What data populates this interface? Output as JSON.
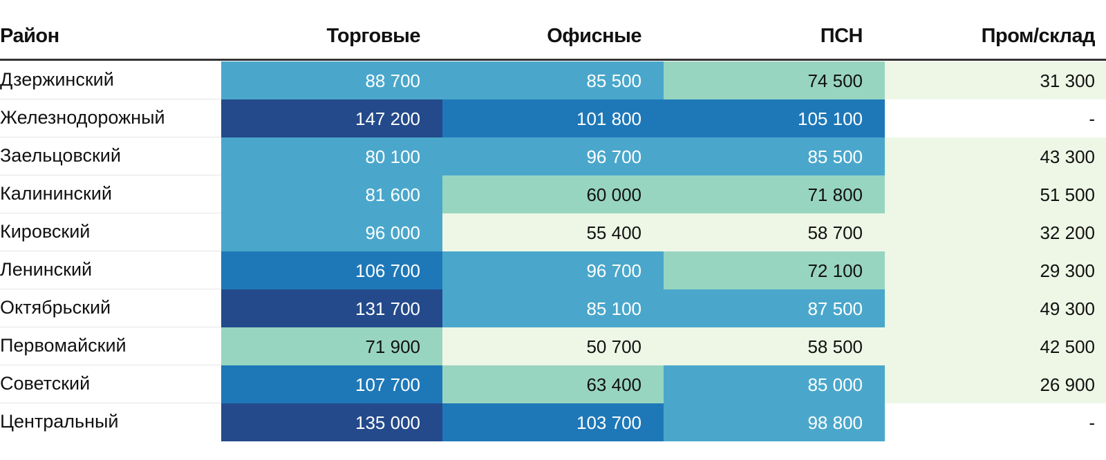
{
  "chart_data": {
    "type": "table",
    "title": "",
    "columns": [
      "Район",
      "Торговые",
      "Офисные",
      "ПСН",
      "Пром/склад"
    ],
    "rows": [
      {
        "district": "Дзержинский",
        "values": [
          "88 700",
          "85 500",
          "74 500",
          "31 300"
        ],
        "numeric": [
          88700,
          85500,
          74500,
          31300
        ]
      },
      {
        "district": "Железнодорожный",
        "values": [
          "147 200",
          "101 800",
          "105 100",
          "-"
        ],
        "numeric": [
          147200,
          101800,
          105100,
          null
        ]
      },
      {
        "district": "Заельцовский",
        "values": [
          "80 100",
          "96 700",
          "85 500",
          "43 300"
        ],
        "numeric": [
          80100,
          96700,
          85500,
          43300
        ]
      },
      {
        "district": "Калининский",
        "values": [
          "81 600",
          "60 000",
          "71 800",
          "51 500"
        ],
        "numeric": [
          81600,
          60000,
          71800,
          51500
        ]
      },
      {
        "district": "Кировский",
        "values": [
          "96 000",
          "55 400",
          "58 700",
          "32 200"
        ],
        "numeric": [
          96000,
          55400,
          58700,
          32200
        ]
      },
      {
        "district": "Ленинский",
        "values": [
          "106 700",
          "96 700",
          "72 100",
          "29 300"
        ],
        "numeric": [
          106700,
          96700,
          72100,
          29300
        ]
      },
      {
        "district": "Октябрьский",
        "values": [
          "131 700",
          "85 100",
          "87 500",
          "49 300"
        ],
        "numeric": [
          131700,
          85100,
          87500,
          49300
        ]
      },
      {
        "district": "Первомайский",
        "values": [
          "71 900",
          "50 700",
          "58 500",
          "42 500"
        ],
        "numeric": [
          71900,
          50700,
          58500,
          42500
        ]
      },
      {
        "district": "Советский",
        "values": [
          "107 700",
          "63 400",
          "85 000",
          "26 900"
        ],
        "numeric": [
          107700,
          63400,
          85000,
          26900
        ]
      },
      {
        "district": "Центральный",
        "values": [
          "135 000",
          "103 700",
          "98 800",
          "-"
        ],
        "numeric": [
          135000,
          103700,
          98800,
          null
        ]
      }
    ],
    "color_scale": {
      "thresholds": [
        50000,
        60000,
        80000,
        100000,
        120000
      ],
      "colors": [
        "#eef7e6",
        "#eef7e6",
        "#98d5c0",
        "#4aa7cb",
        "#1e78b8",
        "#244a8b"
      ],
      "empty_color": "#ffffff",
      "light_text": "#ffffff",
      "dark_text": "#111111"
    }
  }
}
